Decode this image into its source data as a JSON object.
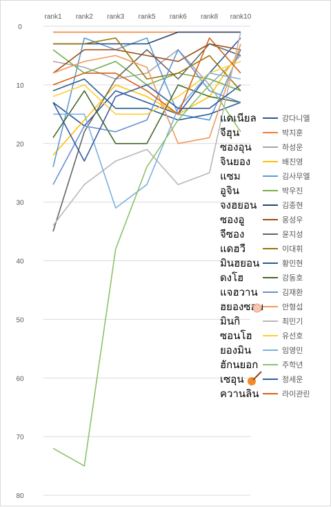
{
  "chart_data": {
    "type": "line",
    "categories": [
      "rank1",
      "rank2",
      "rank3",
      "rank5",
      "rank6",
      "rank8",
      "rank10"
    ],
    "ylim": [
      0,
      80
    ],
    "y_reversed": true,
    "yticks": [
      0,
      10,
      20,
      30,
      40,
      50,
      60,
      70,
      80
    ],
    "grid": true,
    "legend_position": "right",
    "series": [
      {
        "name": "강다니엘",
        "color": "#2e5597",
        "values": [
          13,
          17,
          11,
          13,
          15,
          8,
          2
        ]
      },
      {
        "name": "박지훈",
        "color": "#ed7d31",
        "values": [
          1,
          1,
          1,
          1,
          1,
          1,
          1
        ]
      },
      {
        "name": "하성운",
        "color": "#a5a5a5",
        "values": [
          6,
          7,
          9,
          8,
          4,
          10,
          5
        ]
      },
      {
        "name": "배진영",
        "color": "#ffc000",
        "values": [
          22,
          16,
          10,
          12,
          15,
          12,
          4
        ]
      },
      {
        "name": "김사무엘",
        "color": "#5b9bd5",
        "values": [
          24,
          2,
          4,
          2,
          15,
          16,
          4
        ]
      },
      {
        "name": "박우진",
        "color": "#70ad47",
        "values": [
          4,
          8,
          6,
          10,
          8,
          9,
          11
        ]
      },
      {
        "name": "김종현",
        "color": "#264478",
        "values": [
          3,
          3,
          3,
          3,
          1,
          1,
          1
        ]
      },
      {
        "name": "옹성우",
        "color": "#9e480e",
        "values": [
          8,
          4,
          4,
          5,
          6,
          3,
          4
        ]
      },
      {
        "name": "윤지성",
        "color": "#636363",
        "values": [
          35,
          18,
          9,
          4,
          9,
          3,
          5
        ]
      },
      {
        "name": "이대휘",
        "color": "#997300",
        "values": [
          3,
          3,
          2,
          9,
          8,
          5,
          11
        ]
      },
      {
        "name": "황민현",
        "color": "#255e91",
        "values": [
          11,
          9,
          14,
          14,
          16,
          15,
          13
        ]
      },
      {
        "name": "강동호",
        "color": "#43682b",
        "values": [
          19,
          11,
          20,
          20,
          10,
          12,
          13
        ]
      },
      {
        "name": "김재환",
        "color": "#698ed0",
        "values": [
          27,
          17,
          18,
          16,
          4,
          11,
          13
        ]
      },
      {
        "name": "안형섭",
        "color": "#f1975a",
        "values": [
          8,
          6,
          5,
          7,
          20,
          19,
          3
        ]
      },
      {
        "name": "최민기",
        "color": "#b7b7b7",
        "values": [
          34,
          27,
          23,
          21,
          27,
          25,
          1
        ]
      },
      {
        "name": "유선호",
        "color": "#ffcd33",
        "values": [
          12,
          10,
          15,
          15,
          12,
          8,
          6
        ]
      },
      {
        "name": "임영민",
        "color": "#7cafdd",
        "values": [
          15,
          15,
          31,
          27,
          14,
          8,
          9
        ]
      },
      {
        "name": "주학년",
        "color": "#8cc168",
        "values": [
          72,
          75,
          38,
          24,
          16,
          10,
          18
        ]
      },
      {
        "name": "정세운",
        "color": "#335aa1",
        "values": [
          13,
          23,
          12,
          10,
          14,
          14,
          10
        ]
      },
      {
        "name": "라이관린",
        "color": "#d26012",
        "values": [
          10,
          8,
          8,
          11,
          15,
          2,
          8
        ]
      }
    ]
  },
  "overlay_names": [
    "แดเนียล",
    "จีฮุน",
    "ซองอุน",
    "จินยอง",
    "แซม",
    "อูจิน",
    "จงฮยอน",
    "ซองอู",
    "จีซอง",
    "แดฮวี",
    "มินฮยอน",
    "ดงโฮ",
    "แจฮวาน",
    "ฮยองซอบ",
    "มินกิ",
    "ซอนโฮ",
    "ยองมิน",
    "ฮักนยอก",
    "เซอุน",
    "ควานลิน"
  ]
}
